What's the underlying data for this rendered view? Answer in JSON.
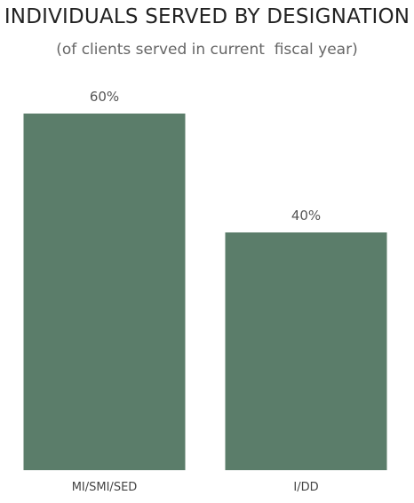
{
  "chart_data": {
    "type": "bar",
    "title": "INDIVIDUALS SERVED BY DESIGNATION",
    "subtitle": "(of clients served in current  fiscal year)",
    "categories": [
      "MI/SMI/SED",
      "I/DD"
    ],
    "values": [
      60,
      40
    ],
    "data_labels": [
      "60%",
      "40%"
    ],
    "xlabel": "",
    "ylabel": "",
    "ylim": [
      0,
      60
    ],
    "grid": false,
    "bar_color": "#5b7d6a"
  }
}
